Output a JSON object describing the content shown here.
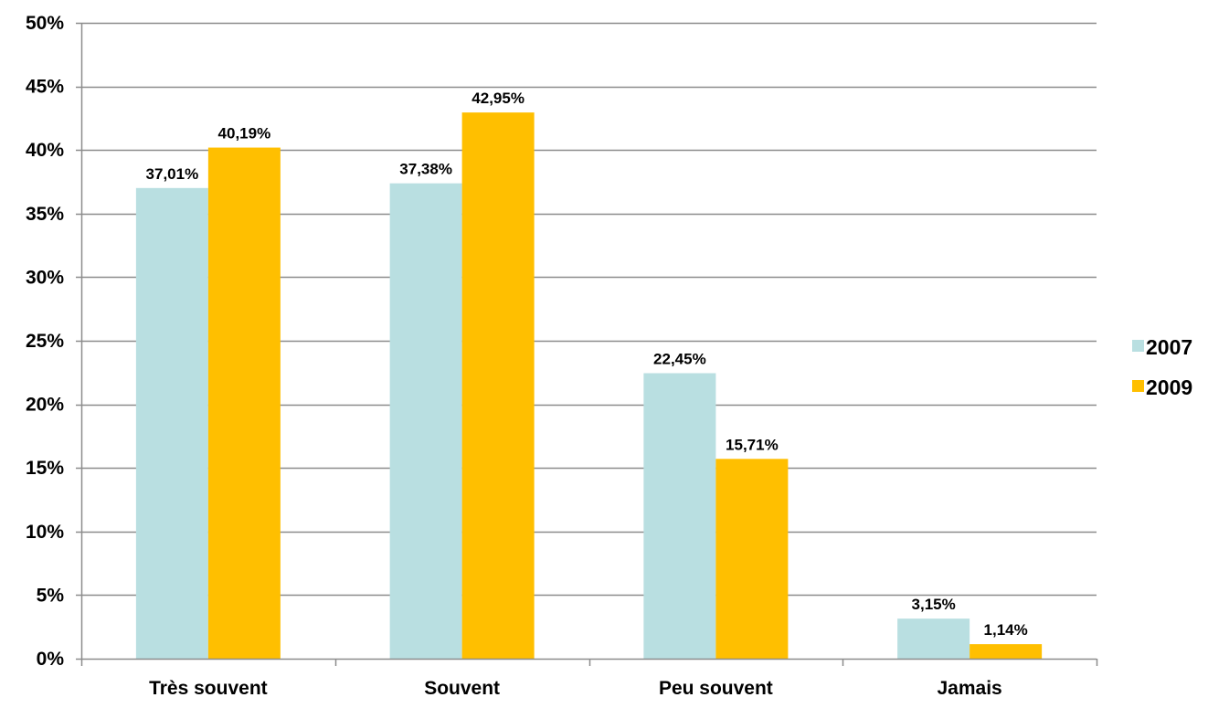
{
  "chart_data": {
    "type": "bar",
    "categories": [
      "Très souvent",
      "Souvent",
      "Peu souvent",
      "Jamais"
    ],
    "series": [
      {
        "name": "2007",
        "values": [
          37.01,
          37.38,
          22.45,
          3.15
        ],
        "labels": [
          "37,01%",
          "37,38%",
          "22,45%",
          "3,15%"
        ],
        "color": "#b9dfe1"
      },
      {
        "name": "2009",
        "values": [
          40.19,
          42.95,
          15.71,
          1.14
        ],
        "labels": [
          "40,19%",
          "42,95%",
          "15,71%",
          "1,14%"
        ],
        "color": "#ffbf00"
      }
    ],
    "ylim": [
      0,
      50
    ],
    "yticks": [
      0,
      5,
      10,
      15,
      20,
      25,
      30,
      35,
      40,
      45,
      50
    ],
    "ytick_labels": [
      "0%",
      "5%",
      "10%",
      "15%",
      "20%",
      "25%",
      "30%",
      "35%",
      "40%",
      "45%",
      "50%"
    ],
    "title": "",
    "xlabel": "",
    "ylabel": "",
    "grid": true,
    "legend_position": "right"
  }
}
